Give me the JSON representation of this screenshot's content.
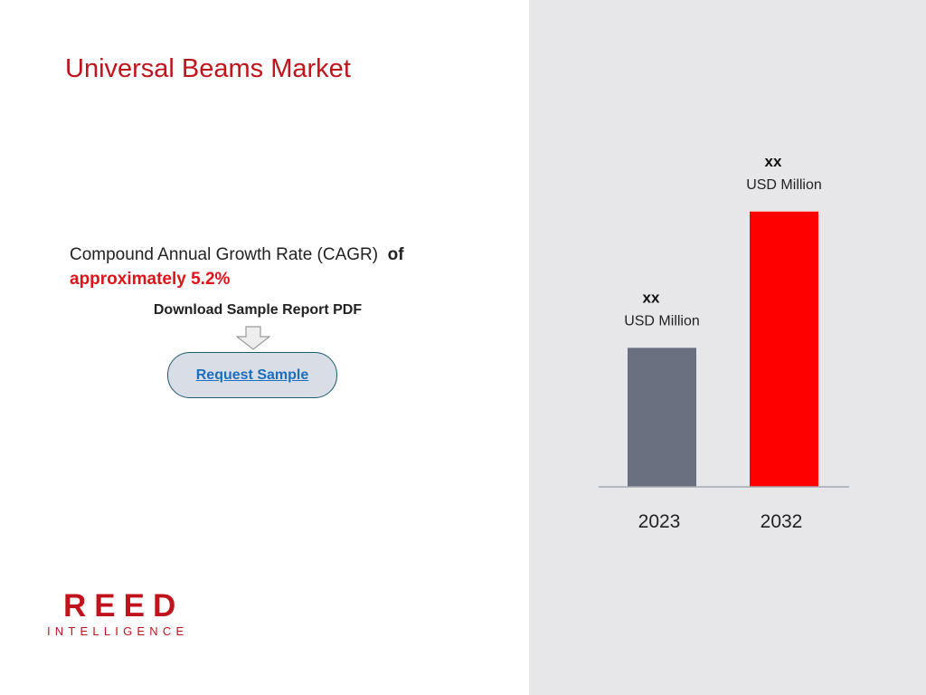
{
  "title": "Universal Beams Market",
  "cagr": {
    "text": "Compound Annual Growth Rate (CAGR)",
    "of_word": "of",
    "rate_text": "approximately 5.2%"
  },
  "download_label": "Download Sample Report PDF",
  "request_button_label": "Request Sample",
  "logo": {
    "main": "REED",
    "sub": "INTELLIGENCE"
  },
  "colors": {
    "title": "#c0141c",
    "bar_2023": "#6a7080",
    "bar_2032": "#ff0000",
    "right_panel_bg": "#e7e7e9"
  },
  "icons": [
    "down-arrow-icon"
  ],
  "chart_data": {
    "type": "bar",
    "categories": [
      "2023",
      "2032"
    ],
    "values": [
      1.0,
      1.98
    ],
    "ylim": [
      0,
      2.2
    ],
    "grid": false,
    "data_labels": [
      {
        "value": "xx",
        "unit": "USD Million"
      },
      {
        "value": "xx",
        "unit": "USD Million"
      }
    ],
    "bar_colors": [
      "#6a7080",
      "#ff0000"
    ]
  }
}
